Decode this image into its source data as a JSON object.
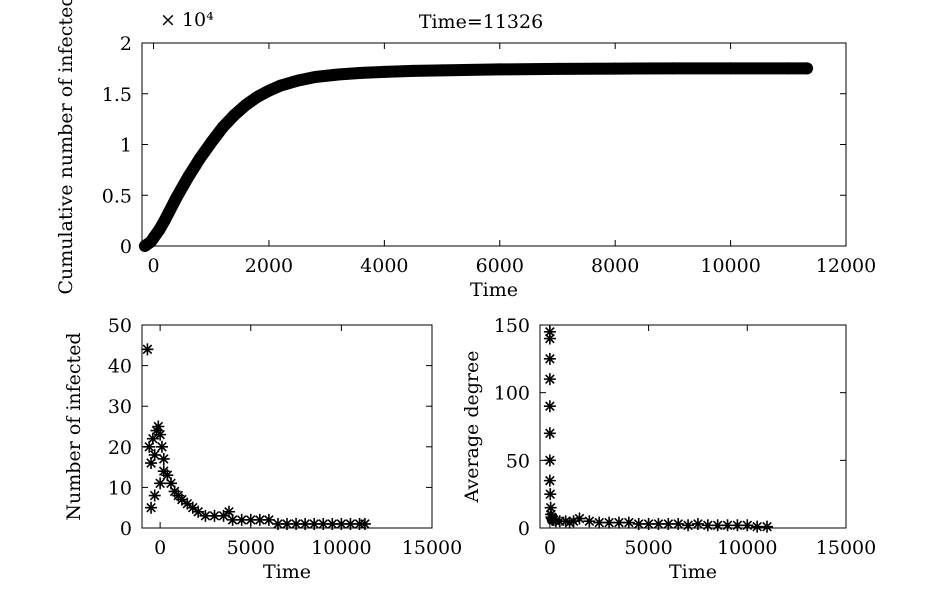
{
  "figure": {
    "title": "Time=11326"
  },
  "chart_data": [
    {
      "type": "scatter",
      "marker": "*",
      "xlabel": "Time",
      "ylabel": "Cumulative number of infected",
      "y_multiplier_label": "× 10⁴",
      "xlim": [
        -200,
        12000
      ],
      "ylim": [
        0,
        2
      ],
      "xticks": [
        0,
        2000,
        4000,
        6000,
        8000,
        10000,
        12000
      ],
      "yticks": [
        0,
        0.5,
        1,
        1.5,
        2
      ],
      "ytick_labels": [
        "0",
        "0.5",
        "1",
        "1.5",
        "2"
      ],
      "grid": false,
      "series": [
        {
          "x": [
            -150,
            -50,
            0,
            100,
            200,
            300,
            400,
            500,
            600,
            800,
            1000,
            1200,
            1400,
            1600,
            1800,
            2000,
            2200,
            2500,
            2800,
            3200,
            3600,
            4000,
            4500,
            5000,
            6000,
            7000,
            8000,
            9000,
            10000,
            11000,
            11326
          ],
          "y": [
            0.0,
            0.04,
            0.08,
            0.16,
            0.26,
            0.37,
            0.48,
            0.58,
            0.68,
            0.86,
            1.02,
            1.17,
            1.29,
            1.39,
            1.47,
            1.53,
            1.58,
            1.63,
            1.665,
            1.69,
            1.705,
            1.715,
            1.725,
            1.73,
            1.74,
            1.745,
            1.748,
            1.75,
            1.75,
            1.75,
            1.75
          ]
        }
      ]
    },
    {
      "type": "scatter",
      "marker": "*",
      "xlabel": "Time",
      "ylabel": "Number of infected",
      "xlim": [
        -1000,
        15000
      ],
      "ylim": [
        0,
        50
      ],
      "xticks": [
        0,
        5000,
        10000,
        15000
      ],
      "yticks": [
        0,
        10,
        20,
        30,
        40,
        50
      ],
      "grid": false,
      "series": [
        {
          "x": [
            -700,
            -600,
            -500,
            -400,
            -300,
            -200,
            -100,
            0,
            100,
            200,
            -500,
            -300,
            0,
            200,
            400,
            600,
            800,
            1000,
            1200,
            1500,
            1800,
            2100,
            2500,
            3000,
            3500,
            3800,
            4000,
            4500,
            5000,
            5500,
            6000,
            6500,
            7000,
            7500,
            8000,
            8500,
            9000,
            9500,
            10000,
            10500,
            11000,
            11300
          ],
          "y": [
            44,
            20,
            16,
            22,
            18,
            24,
            25,
            23,
            20,
            14,
            5,
            8,
            11,
            17,
            13,
            11,
            9,
            8,
            7,
            6,
            5,
            4,
            3,
            3,
            3,
            4,
            2,
            2,
            2,
            2,
            2,
            1,
            1,
            1,
            1,
            1,
            1,
            1,
            1,
            1,
            1,
            1
          ]
        }
      ]
    },
    {
      "type": "scatter",
      "marker": "*",
      "xlabel": "Time",
      "ylabel": "Average degree",
      "xlim": [
        -500,
        15000
      ],
      "ylim": [
        0,
        150
      ],
      "xticks": [
        0,
        5000,
        10000,
        15000
      ],
      "yticks": [
        0,
        50,
        100,
        150
      ],
      "grid": false,
      "series": [
        {
          "x": [
            0,
            0,
            0,
            0,
            0,
            0,
            0,
            0,
            20,
            40,
            60,
            80,
            100,
            150,
            200,
            300,
            500,
            800,
            1000,
            1200,
            1500,
            2000,
            2500,
            3000,
            3500,
            4000,
            4500,
            5000,
            5500,
            6000,
            6500,
            7000,
            7500,
            8000,
            8500,
            9000,
            9500,
            10000,
            10500,
            11000
          ],
          "y": [
            145,
            140,
            125,
            110,
            90,
            70,
            50,
            35,
            25,
            15,
            10,
            8,
            7,
            6,
            6,
            5,
            5,
            5,
            4,
            5,
            7,
            5,
            4,
            4,
            4,
            4,
            3,
            3,
            3,
            3,
            3,
            2,
            3,
            2,
            2,
            2,
            2,
            2,
            1,
            1
          ]
        }
      ]
    }
  ]
}
